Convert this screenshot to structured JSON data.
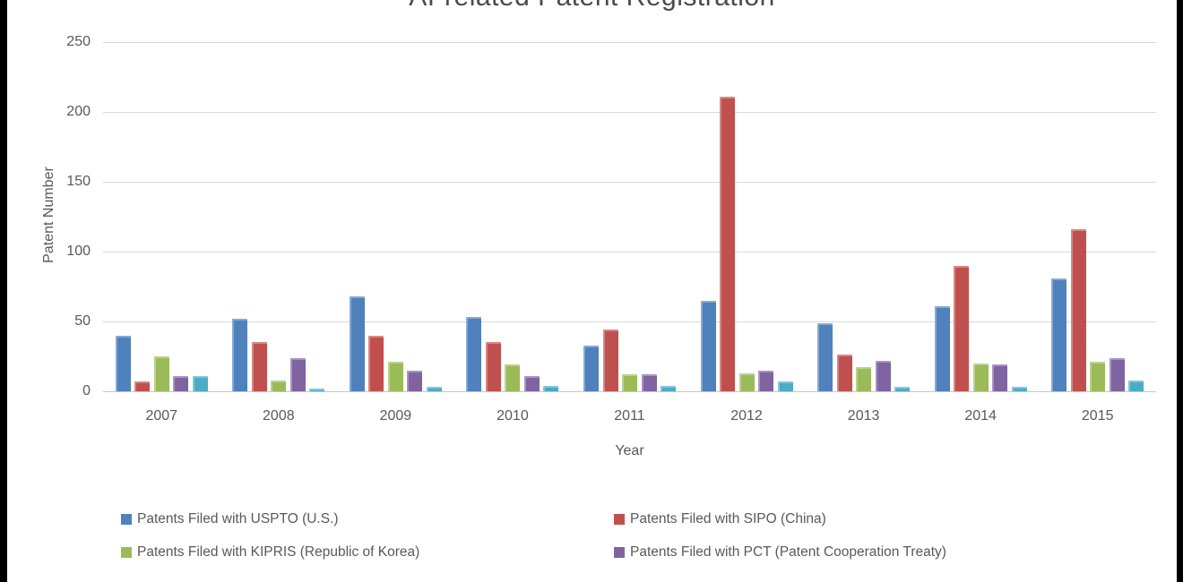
{
  "title": "AI-related Patent Registration",
  "chart_data": {
    "type": "bar",
    "title": "AI-related Patent Registration",
    "xlabel": "Year",
    "ylabel": "Patent Number",
    "ylim": [
      0,
      250
    ],
    "yticks": [
      0,
      50,
      100,
      150,
      200,
      250
    ],
    "grid": true,
    "legend_position": "bottom",
    "categories": [
      "2007",
      "2008",
      "2009",
      "2010",
      "2011",
      "2012",
      "2013",
      "2014",
      "2015"
    ],
    "series": [
      {
        "name": "Patents Filed with USPTO (U.S.)",
        "color": "#4F81BD",
        "legend_visible": true,
        "values": [
          40,
          52,
          68,
          53,
          33,
          65,
          49,
          61,
          81
        ]
      },
      {
        "name": "Patents Filed with SIPO (China)",
        "color": "#C0504D",
        "legend_visible": true,
        "values": [
          7,
          35,
          40,
          35,
          44,
          211,
          26,
          90,
          116
        ]
      },
      {
        "name": "Patents Filed with KIPRIS (Republic of Korea)",
        "color": "#9BBB59",
        "legend_visible": true,
        "values": [
          25,
          8,
          21,
          19,
          12,
          13,
          17,
          20,
          21
        ]
      },
      {
        "name": "Patents Filed with PCT (Patent Cooperation Treaty)",
        "color": "#8064A2",
        "legend_visible": true,
        "values": [
          11,
          24,
          15,
          11,
          12,
          15,
          22,
          19,
          24
        ]
      },
      {
        "name": "",
        "color": "#4BACC6",
        "legend_visible": false,
        "values": [
          11,
          2,
          3,
          4,
          4,
          7,
          3,
          3,
          8
        ]
      }
    ]
  },
  "legend": {
    "rows": [
      [
        {
          "label": "Patents Filed with USPTO (U.S.)",
          "color": "#4F81BD"
        },
        {
          "label": "Patents Filed with SIPO (China)",
          "color": "#C0504D"
        }
      ],
      [
        {
          "label": "Patents Filed with KIPRIS (Republic of Korea)",
          "color": "#9BBB59"
        },
        {
          "label": "Patents Filed with PCT (Patent Cooperation Treaty)",
          "color": "#8064A2"
        }
      ]
    ]
  },
  "colors": {
    "background": "#ffffff",
    "frame_edges": "#000000",
    "gridline": "#d9d9d9",
    "axis_text": "#595959",
    "title_text": "#4a4a4a"
  }
}
